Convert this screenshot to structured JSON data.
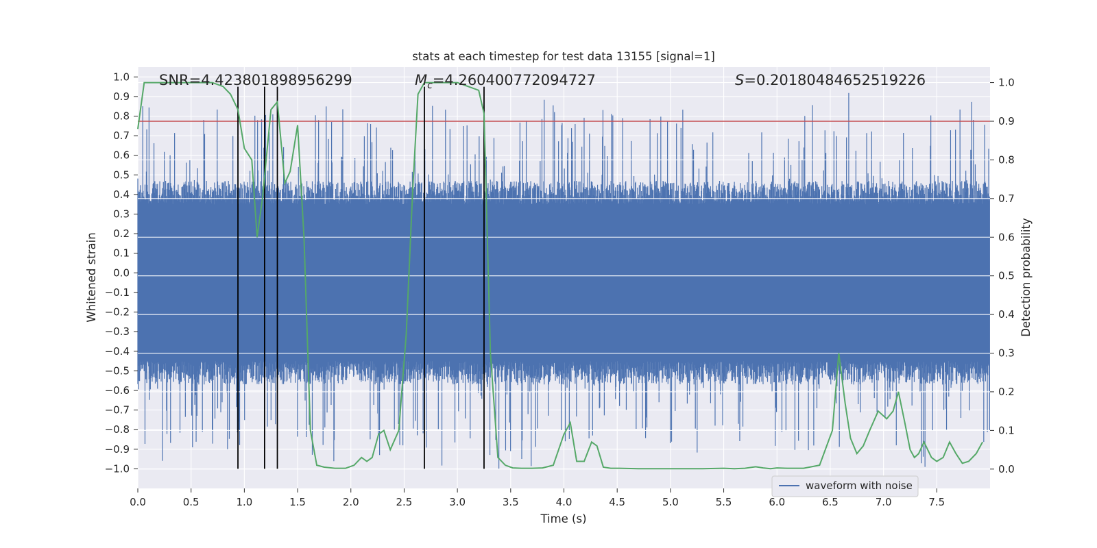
{
  "chart_data": {
    "type": "line",
    "title": "stats at each timestep for test data 13155 [signal=1]",
    "xlabel": "Time (s)",
    "ylabel": "Whitened strain",
    "ylabel_right": "Detection probability",
    "xlim": [
      0.0,
      8.0
    ],
    "ylim": [
      -1.1,
      1.05
    ],
    "ylim_right": [
      -0.05,
      1.04
    ],
    "x_ticks": [
      "0.0",
      "0.5",
      "1.0",
      "1.5",
      "2.0",
      "2.5",
      "3.0",
      "3.5",
      "4.0",
      "4.5",
      "5.0",
      "5.5",
      "6.0",
      "6.5",
      "7.0",
      "7.5"
    ],
    "y_ticks": [
      "1.0",
      "0.9",
      "0.8",
      "0.7",
      "0.6",
      "0.5",
      "0.4",
      "0.3",
      "0.2",
      "0.1",
      "0.0",
      "-0.1",
      "-0.2",
      "-0.3",
      "-0.4",
      "-0.5",
      "-0.6",
      "-0.7",
      "-0.8",
      "-0.9",
      "-1.0"
    ],
    "y_ticks_right": [
      "1.0",
      "0.9",
      "0.8",
      "0.7",
      "0.6",
      "0.5",
      "0.4",
      "0.3",
      "0.2",
      "0.1",
      "0.0"
    ],
    "annotations": {
      "snr": "SNR=4.423801898956299",
      "mc_symbol": "M",
      "mc_sub": "c",
      "mc_value": "=4.260400772094727",
      "s_symbol": "S",
      "s_value": "=0.20180484652519226"
    },
    "threshold": {
      "value": 0.9,
      "axis": "right",
      "color": "#c44e52"
    },
    "vertical_lines": [
      0.94,
      1.19,
      1.31,
      2.69,
      3.25
    ],
    "legend": {
      "label": "waveform with noise",
      "location": "lower-right"
    },
    "series": [
      {
        "name": "waveform with noise",
        "axis": "left",
        "color": "#4c72b0",
        "style": "dense-noise",
        "band": [
          -0.45,
          0.35
        ],
        "envelope_max": [
          0.93,
          -1.0
        ]
      },
      {
        "name": "detection probability",
        "axis": "right",
        "color": "#55a868",
        "x": [
          0.0,
          0.06,
          0.12,
          0.2,
          0.3,
          0.4,
          0.5,
          0.6,
          0.7,
          0.8,
          0.87,
          0.94,
          1.0,
          1.07,
          1.12,
          1.17,
          1.25,
          1.31,
          1.38,
          1.43,
          1.5,
          1.56,
          1.62,
          1.68,
          1.75,
          1.85,
          1.95,
          2.03,
          2.1,
          2.15,
          2.2,
          2.26,
          2.31,
          2.37,
          2.45,
          2.52,
          2.58,
          2.63,
          2.69,
          2.75,
          2.81,
          2.9,
          3.0,
          3.1,
          3.2,
          3.25,
          3.31,
          3.38,
          3.45,
          3.52,
          3.6,
          3.7,
          3.8,
          3.9,
          4.0,
          4.06,
          4.12,
          4.19,
          4.26,
          4.31,
          4.37,
          4.44,
          4.52,
          4.7,
          4.9,
          5.1,
          5.3,
          5.5,
          5.6,
          5.7,
          5.8,
          5.87,
          5.94,
          6.0,
          6.1,
          6.25,
          6.4,
          6.52,
          6.58,
          6.64,
          6.69,
          6.75,
          6.81,
          6.87,
          6.95,
          7.03,
          7.09,
          7.14,
          7.2,
          7.25,
          7.29,
          7.33,
          7.38,
          7.45,
          7.5,
          7.56,
          7.62,
          7.68,
          7.74,
          7.8,
          7.87,
          7.93
        ],
        "y": [
          0.88,
          1.0,
          1.0,
          1.0,
          1.0,
          1.0,
          1.0,
          1.0,
          1.0,
          0.99,
          0.97,
          0.93,
          0.83,
          0.8,
          0.6,
          0.7,
          0.93,
          0.95,
          0.74,
          0.77,
          0.89,
          0.6,
          0.1,
          0.01,
          0.005,
          0.002,
          0.002,
          0.01,
          0.03,
          0.02,
          0.03,
          0.09,
          0.1,
          0.05,
          0.1,
          0.35,
          0.72,
          0.97,
          1.0,
          1.0,
          1.0,
          1.0,
          1.0,
          0.99,
          0.98,
          0.92,
          0.3,
          0.03,
          0.01,
          0.003,
          0.002,
          0.002,
          0.003,
          0.01,
          0.09,
          0.12,
          0.02,
          0.02,
          0.07,
          0.06,
          0.005,
          0.002,
          0.002,
          0.001,
          0.001,
          0.001,
          0.001,
          0.002,
          0.001,
          0.002,
          0.006,
          0.003,
          0.001,
          0.003,
          0.002,
          0.002,
          0.01,
          0.1,
          0.3,
          0.17,
          0.08,
          0.04,
          0.06,
          0.1,
          0.15,
          0.13,
          0.15,
          0.2,
          0.12,
          0.05,
          0.03,
          0.04,
          0.07,
          0.03,
          0.02,
          0.03,
          0.07,
          0.04,
          0.015,
          0.02,
          0.04,
          0.07
        ]
      }
    ]
  }
}
